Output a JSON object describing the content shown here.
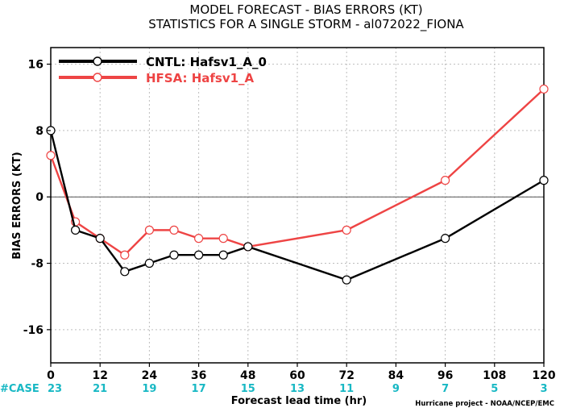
{
  "chart_data": {
    "type": "line",
    "title": "MODEL FORECAST - BIAS ERRORS (KT)",
    "subtitle": "STATISTICS FOR A SINGLE STORM - al072022_FIONA",
    "xlabel": "Forecast lead time (hr)",
    "ylabel": "BIAS ERRORS (KT)",
    "xlim": [
      0,
      120
    ],
    "ylim": [
      -20,
      18
    ],
    "x_ticks": [
      0,
      12,
      24,
      36,
      48,
      60,
      72,
      84,
      96,
      108,
      120
    ],
    "y_ticks": [
      -16,
      -8,
      0,
      8,
      16
    ],
    "grid": true,
    "zero_line": true,
    "legend_position": "top-left",
    "case_label": "#CASE",
    "case_counts": [
      23,
      21,
      19,
      17,
      15,
      13,
      11,
      9,
      7,
      5,
      3
    ],
    "credit": "Hurricane project - NOAA/NCEP/EMC",
    "series": [
      {
        "name": "CNTL: Hafsv1_A_0",
        "color": "#000000",
        "x": [
          0,
          6,
          12,
          18,
          24,
          30,
          36,
          42,
          48,
          72,
          96,
          120
        ],
        "values": [
          8,
          -4,
          -5,
          -9,
          -8,
          -7,
          -7,
          -7,
          -6,
          -10,
          -5,
          2
        ]
      },
      {
        "name": "HFSA: Hafsv1_A",
        "color": "#ee4444",
        "x": [
          0,
          6,
          12,
          18,
          24,
          30,
          36,
          42,
          48,
          72,
          96,
          120
        ],
        "values": [
          5,
          -3,
          -5,
          -7,
          -4,
          -4,
          -5,
          -5,
          -6,
          -4,
          2,
          13
        ]
      }
    ]
  }
}
